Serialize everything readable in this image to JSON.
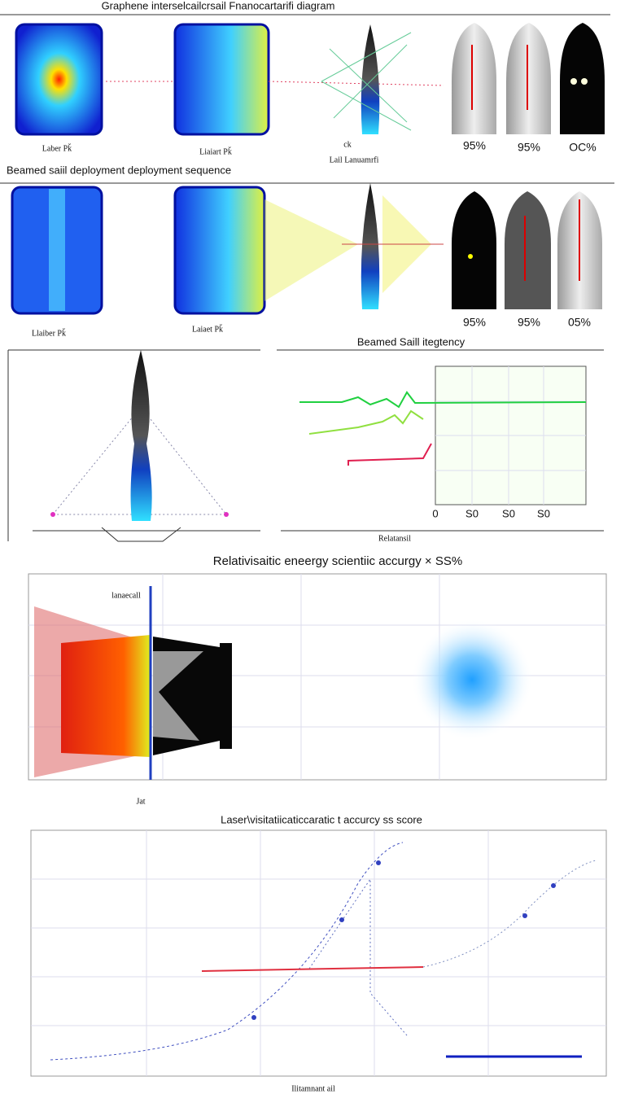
{
  "panels": [
    {
      "title": "Graphene interselcailcrsail Fnanocartarifi diagram",
      "labels": [
        "Laber Pǩ",
        "Liaiart Pǩ",
        "ck",
        "Lail Lanuamrfi"
      ],
      "percents": [
        "95%",
        "95%",
        "OC%"
      ]
    },
    {
      "title": "Beamed saiil deployment  deployment sequence",
      "labels": [
        "Llaiber Pǩ",
        "Laiaet Pǩ"
      ],
      "percents": [
        "95%",
        "95%",
        "05%"
      ]
    },
    {
      "title": "Beamed Saill itegtency",
      "labels": [
        "Relatansil"
      ],
      "ticks": [
        "0",
        "S0",
        "S0",
        "S0"
      ]
    },
    {
      "title": "Relativisaitic eneergy scientiic accurgy × SS%",
      "labels": [
        "lanaecall",
        "Jat"
      ]
    },
    {
      "title": "Laser\\visitatiicaticcaratic t accurcy ss score",
      "labels": [
        "Ilitamnant ail"
      ]
    }
  ]
}
